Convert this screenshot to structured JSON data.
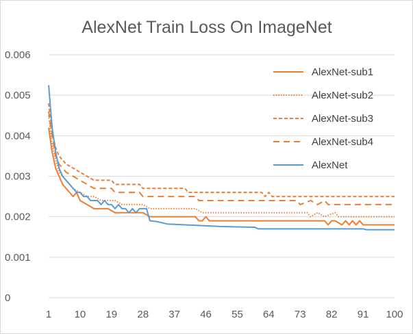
{
  "chart_data": {
    "type": "line",
    "title": "AlexNet Train Loss On ImageNet",
    "xlabel": "",
    "ylabel": "",
    "xlim": [
      1,
      100
    ],
    "ylim": [
      0,
      0.006
    ],
    "x_ticks": [
      1,
      10,
      19,
      28,
      37,
      46,
      55,
      64,
      73,
      82,
      91,
      100
    ],
    "x_tick_labels": [
      "1",
      "10",
      "19",
      "28",
      "37",
      "46",
      "55",
      "64",
      "73",
      "82",
      "91",
      "100"
    ],
    "y_ticks": [
      0,
      0.001,
      0.002,
      0.003,
      0.004,
      0.005,
      0.006
    ],
    "y_tick_labels": [
      "0",
      "0.001",
      "0.002",
      "0.003",
      "0.004",
      "0.005",
      "0.006"
    ],
    "grid": "horizontal",
    "legend_position": "right",
    "series": [
      {
        "name": "AlexNet-sub1",
        "color": "#ED7D31",
        "dash": "solid",
        "points": [
          [
            1,
            0.0042
          ],
          [
            2,
            0.0036
          ],
          [
            3,
            0.0032
          ],
          [
            4,
            0.003
          ],
          [
            5,
            0.0028
          ],
          [
            6,
            0.0027
          ],
          [
            7,
            0.0026
          ],
          [
            8,
            0.0025
          ],
          [
            9,
            0.0026
          ],
          [
            10,
            0.0024
          ],
          [
            12,
            0.0023
          ],
          [
            14,
            0.0022
          ],
          [
            16,
            0.0022
          ],
          [
            18,
            0.0022
          ],
          [
            20,
            0.0021
          ],
          [
            22,
            0.0021
          ],
          [
            28,
            0.0021
          ],
          [
            30,
            0.002
          ],
          [
            43,
            0.002
          ],
          [
            44,
            0.0019
          ],
          [
            45,
            0.0019
          ],
          [
            46,
            0.002
          ],
          [
            47,
            0.0019
          ],
          [
            80,
            0.0019
          ],
          [
            81,
            0.0018
          ],
          [
            82,
            0.0019
          ],
          [
            83,
            0.0019
          ],
          [
            85,
            0.0018
          ],
          [
            86,
            0.0019
          ],
          [
            87,
            0.0018
          ],
          [
            88,
            0.0019
          ],
          [
            89,
            0.0018
          ],
          [
            90,
            0.0019
          ],
          [
            91,
            0.0018
          ],
          [
            100,
            0.0018
          ]
        ]
      },
      {
        "name": "AlexNet-sub2",
        "color": "#ED7D31",
        "dash": "dotted",
        "points": [
          [
            1,
            0.0045
          ],
          [
            2,
            0.0038
          ],
          [
            3,
            0.0034
          ],
          [
            4,
            0.0031
          ],
          [
            5,
            0.003
          ],
          [
            6,
            0.0029
          ],
          [
            7,
            0.0028
          ],
          [
            8,
            0.0027
          ],
          [
            10,
            0.0026
          ],
          [
            12,
            0.0025
          ],
          [
            14,
            0.0025
          ],
          [
            16,
            0.0024
          ],
          [
            20,
            0.0024
          ],
          [
            22,
            0.0023
          ],
          [
            28,
            0.0023
          ],
          [
            30,
            0.0022
          ],
          [
            43,
            0.0022
          ],
          [
            45,
            0.0021
          ],
          [
            75,
            0.0021
          ],
          [
            76,
            0.002
          ],
          [
            78,
            0.0021
          ],
          [
            80,
            0.002
          ],
          [
            83,
            0.0021
          ],
          [
            84,
            0.002
          ],
          [
            100,
            0.002
          ]
        ]
      },
      {
        "name": "AlexNet-sub3",
        "color": "#ED7D31",
        "dash": "dashed-short",
        "points": [
          [
            1,
            0.0048
          ],
          [
            2,
            0.0041
          ],
          [
            3,
            0.0037
          ],
          [
            4,
            0.0035
          ],
          [
            6,
            0.0033
          ],
          [
            8,
            0.0032
          ],
          [
            10,
            0.0031
          ],
          [
            12,
            0.003
          ],
          [
            14,
            0.0029
          ],
          [
            19,
            0.0029
          ],
          [
            20,
            0.0028
          ],
          [
            27,
            0.0028
          ],
          [
            28,
            0.0027
          ],
          [
            40,
            0.0027
          ],
          [
            41,
            0.0026
          ],
          [
            62,
            0.0026
          ],
          [
            63,
            0.0025
          ],
          [
            64,
            0.0026
          ],
          [
            65,
            0.0025
          ],
          [
            100,
            0.0025
          ]
        ]
      },
      {
        "name": "AlexNet-sub4",
        "color": "#ED7D31",
        "dash": "dashed-long",
        "points": [
          [
            1,
            0.0046
          ],
          [
            2,
            0.004
          ],
          [
            3,
            0.0035
          ],
          [
            4,
            0.0033
          ],
          [
            6,
            0.0031
          ],
          [
            8,
            0.003
          ],
          [
            10,
            0.0029
          ],
          [
            12,
            0.0028
          ],
          [
            14,
            0.0027
          ],
          [
            19,
            0.0027
          ],
          [
            20,
            0.0026
          ],
          [
            27,
            0.0026
          ],
          [
            28,
            0.0025
          ],
          [
            43,
            0.0025
          ],
          [
            44,
            0.0024
          ],
          [
            72,
            0.0024
          ],
          [
            73,
            0.0023
          ],
          [
            76,
            0.0024
          ],
          [
            78,
            0.0023
          ],
          [
            80,
            0.0024
          ],
          [
            81,
            0.0023
          ],
          [
            100,
            0.0023
          ]
        ]
      },
      {
        "name": "AlexNet",
        "color": "#5B9BD5",
        "dash": "solid",
        "points": [
          [
            1,
            0.00525
          ],
          [
            2,
            0.0042
          ],
          [
            3,
            0.0036
          ],
          [
            4,
            0.0032
          ],
          [
            5,
            0.003
          ],
          [
            6,
            0.0029
          ],
          [
            7,
            0.0028
          ],
          [
            8,
            0.0027
          ],
          [
            9,
            0.0026
          ],
          [
            10,
            0.0026
          ],
          [
            11,
            0.0025
          ],
          [
            12,
            0.0025
          ],
          [
            13,
            0.0024
          ],
          [
            14,
            0.0024
          ],
          [
            15,
            0.0024
          ],
          [
            16,
            0.0023
          ],
          [
            17,
            0.0024
          ],
          [
            18,
            0.0023
          ],
          [
            19,
            0.0023
          ],
          [
            20,
            0.0022
          ],
          [
            21,
            0.0023
          ],
          [
            22,
            0.0022
          ],
          [
            23,
            0.0022
          ],
          [
            24,
            0.0021
          ],
          [
            25,
            0.0022
          ],
          [
            26,
            0.0021
          ],
          [
            27,
            0.0022
          ],
          [
            28,
            0.0022
          ],
          [
            29,
            0.0022
          ],
          [
            30,
            0.0019
          ],
          [
            32,
            0.00188
          ],
          [
            35,
            0.00182
          ],
          [
            40,
            0.0018
          ],
          [
            45,
            0.00178
          ],
          [
            50,
            0.00176
          ],
          [
            55,
            0.00175
          ],
          [
            60,
            0.00174
          ],
          [
            61,
            0.0017
          ],
          [
            75,
            0.0017
          ],
          [
            91,
            0.0017
          ],
          [
            92,
            0.00168
          ],
          [
            100,
            0.00168
          ]
        ]
      }
    ]
  },
  "colors": {
    "axis_line": "#d9d9d9",
    "grid_line": "#d9d9d9",
    "text": "#595959"
  }
}
